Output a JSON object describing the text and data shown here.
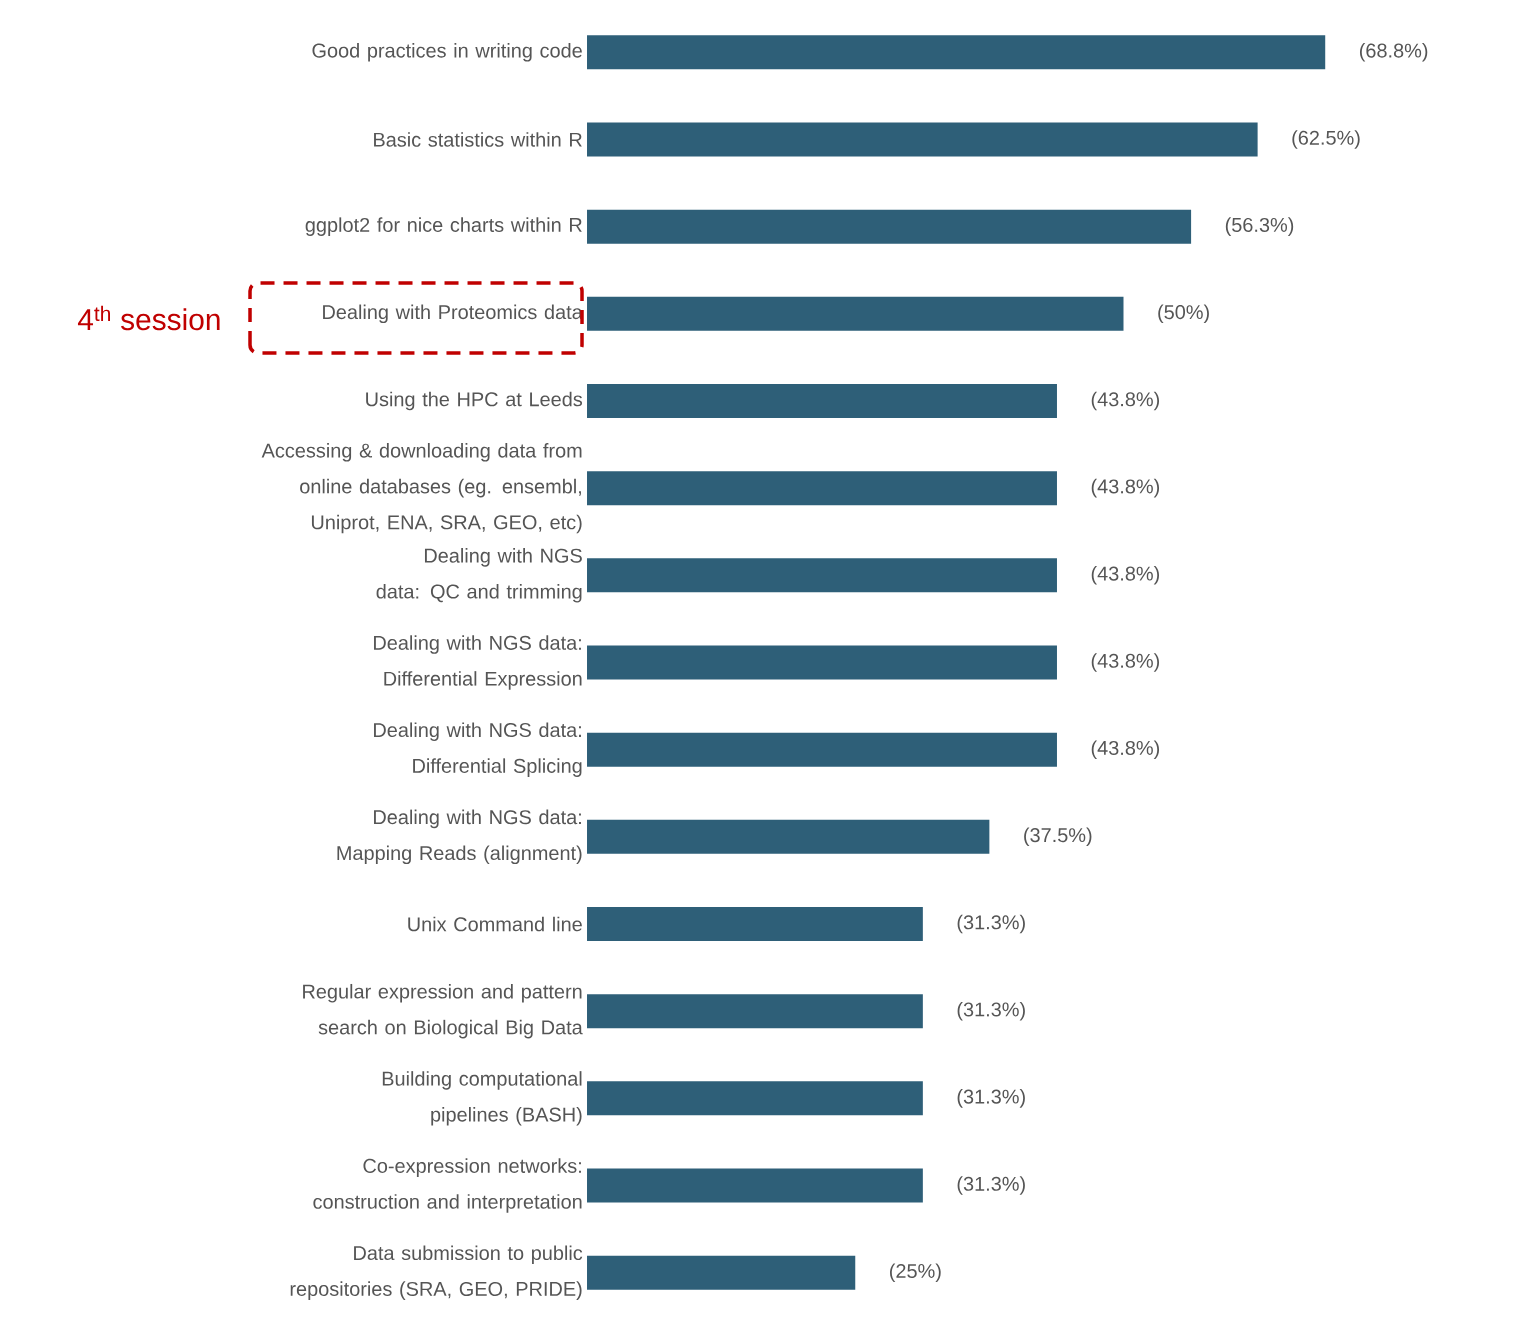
{
  "chart_data": {
    "type": "bar",
    "orientation": "horizontal",
    "color": "#2e5f78",
    "categories": [
      "Good practices in writing code",
      "Basic statistics within R",
      "ggplot2 for nice charts within R",
      "Dealing with Proteomics data",
      "Using the HPC at Leeds",
      "Accessing & downloading data from online databases (eg. ensembl, Uniprot, ENA, SRA, GEO, etc)",
      "Dealing with NGS data: QC and trimming",
      "Dealing with NGS data: Differential Expression",
      "Dealing with NGS data: Differential Splicing",
      "Dealing with NGS data: Mapping Reads (alignment)",
      "Unix Command line",
      "Regular expression and pattern search on Biological Big Data",
      "Building computational pipelines (BASH)",
      "Co-expression networks: construction and interpretation",
      "Data submission to public repositories (SRA, GEO, PRIDE)"
    ],
    "values": [
      68.8,
      62.5,
      56.3,
      50,
      43.8,
      43.8,
      43.8,
      43.8,
      43.8,
      37.5,
      31.3,
      31.3,
      31.3,
      31.3,
      25
    ],
    "value_labels": [
      "(68.8%)",
      "(62.5%)",
      "(56.3%)",
      "(50%)",
      "(43.8%)",
      "(43.8%)",
      "(43.8%)",
      "(43.8%)",
      "(43.8%)",
      "(37.5%)",
      "(31.3%)",
      "(31.3%)",
      "(31.3%)",
      "(31.3%)",
      "(25%)"
    ],
    "annotations": [
      "4$^{th}$ session"
    ]
  }
}
